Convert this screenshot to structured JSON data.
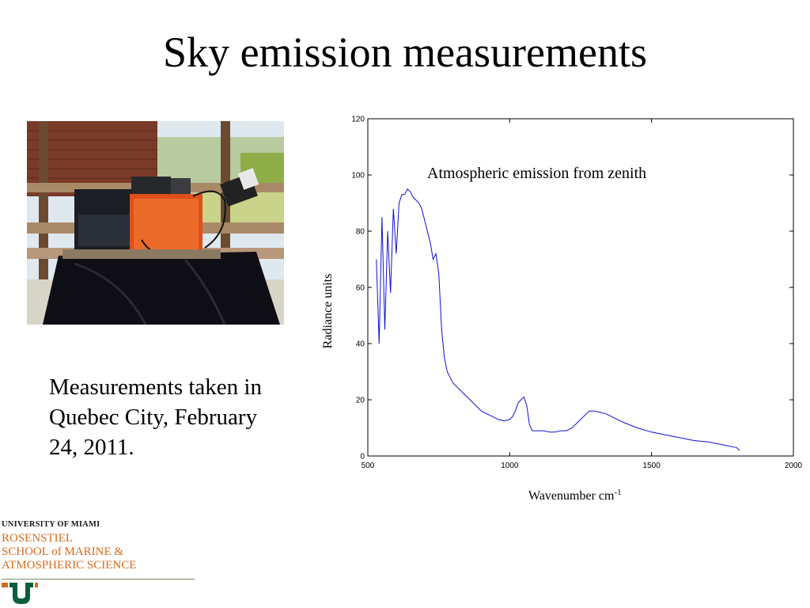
{
  "slide": {
    "title": "Sky emission measurements",
    "caption_lines": [
      "Measurements taken in",
      "Quebec City, February",
      "24, 2011."
    ]
  },
  "photo": {
    "description_icon": "instrument-photo"
  },
  "logo": {
    "university": "UNIVERSITY OF MIAMI",
    "school_lines": [
      "ROSENSTIEL",
      "SCHOOL of MARINE &",
      "ATMOSPHERIC SCIENCE"
    ],
    "colors": {
      "orange": "#d86a1c",
      "green": "#0c5d3c"
    }
  },
  "chart_data": {
    "type": "line",
    "annotation": "Atmospheric emission from zenith",
    "xlabel": "Wavenumber  cm",
    "xlabel_superscript": "-1",
    "ylabel": "Radiance units",
    "xlim": [
      500,
      2000
    ],
    "ylim": [
      0,
      120
    ],
    "x_ticks": [
      500,
      1000,
      1500,
      2000
    ],
    "y_ticks": [
      0,
      20,
      40,
      60,
      80,
      100,
      120
    ],
    "grid": false,
    "series": [
      {
        "color": "#1010d0",
        "x": [
          530,
          540,
          550,
          560,
          570,
          580,
          590,
          600,
          610,
          620,
          630,
          640,
          650,
          660,
          670,
          680,
          690,
          700,
          710,
          720,
          730,
          740,
          750,
          760,
          770,
          780,
          800,
          820,
          840,
          860,
          880,
          900,
          920,
          940,
          960,
          980,
          1000,
          1010,
          1020,
          1030,
          1040,
          1050,
          1060,
          1070,
          1080,
          1100,
          1120,
          1140,
          1160,
          1180,
          1200,
          1220,
          1240,
          1260,
          1280,
          1300,
          1320,
          1340,
          1360,
          1380,
          1400,
          1450,
          1500,
          1550,
          1600,
          1650,
          1700,
          1750,
          1800,
          1810
        ],
        "y": [
          70,
          40,
          85,
          45,
          80,
          58,
          88,
          72,
          90,
          93,
          93,
          95,
          94,
          92,
          91,
          90,
          88,
          84,
          80,
          76,
          70,
          72,
          65,
          45,
          35,
          30,
          26,
          24,
          22,
          20,
          18,
          16,
          15,
          14,
          13,
          12.5,
          13,
          14,
          16,
          19,
          20,
          21,
          18,
          11,
          9,
          9,
          9,
          8.5,
          8.5,
          9,
          9,
          10,
          12,
          14,
          16,
          16,
          15.5,
          15,
          14,
          13,
          12,
          10,
          8.5,
          7.5,
          6.5,
          5.5,
          5,
          4,
          3,
          2
        ]
      }
    ]
  }
}
